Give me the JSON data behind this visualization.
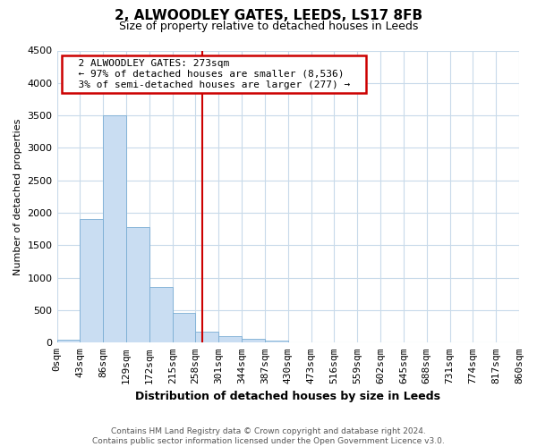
{
  "title": "2, ALWOODLEY GATES, LEEDS, LS17 8FB",
  "subtitle": "Size of property relative to detached houses in Leeds",
  "xlabel": "Distribution of detached houses by size in Leeds",
  "ylabel": "Number of detached properties",
  "bin_labels": [
    "0sqm",
    "43sqm",
    "86sqm",
    "129sqm",
    "172sqm",
    "215sqm",
    "258sqm",
    "301sqm",
    "344sqm",
    "387sqm",
    "430sqm",
    "473sqm",
    "516sqm",
    "559sqm",
    "602sqm",
    "645sqm",
    "688sqm",
    "731sqm",
    "774sqm",
    "817sqm",
    "860sqm"
  ],
  "bar_heights": [
    50,
    1900,
    3500,
    1780,
    860,
    460,
    175,
    100,
    60,
    30,
    10,
    0,
    0,
    0,
    0,
    0,
    0,
    0,
    0,
    0
  ],
  "bar_color": "#c9ddf2",
  "bar_edge_color": "#7aadd4",
  "property_line_x": 6.3,
  "annotation_title": "2 ALWOODLEY GATES: 273sqm",
  "annotation_line1": "← 97% of detached houses are smaller (8,536)",
  "annotation_line2": "3% of semi-detached houses are larger (277) →",
  "annotation_box_color": "#ffffff",
  "annotation_box_edge_color": "#cc0000",
  "vline_color": "#cc0000",
  "ylim": [
    0,
    4500
  ],
  "footer_line1": "Contains HM Land Registry data © Crown copyright and database right 2024.",
  "footer_line2": "Contains public sector information licensed under the Open Government Licence v3.0.",
  "bg_color": "#ffffff",
  "grid_color": "#c8daea"
}
